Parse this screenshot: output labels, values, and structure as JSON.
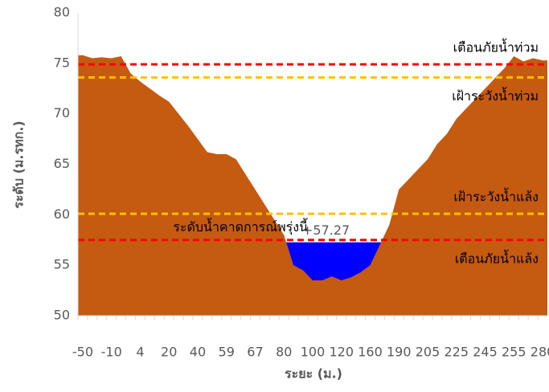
{
  "chart_data": {
    "type": "area",
    "xlabel": "ระยะ (ม.)",
    "ylabel": "ระดับ (ม.รทก.)",
    "categories": [
      "-50",
      null,
      null,
      "-10",
      null,
      null,
      "4",
      null,
      null,
      "20",
      null,
      null,
      "40",
      null,
      null,
      "59",
      null,
      null,
      "67",
      null,
      null,
      "80",
      null,
      null,
      "100",
      null,
      null,
      "120",
      null,
      null,
      "160",
      null,
      null,
      "190",
      null,
      null,
      "205",
      null,
      null,
      "225",
      null,
      null,
      "245",
      null,
      null,
      "255",
      null,
      null,
      "280"
    ],
    "series": [
      {
        "name": "ground",
        "color": "#c55a11",
        "values": [
          75.8,
          75.5,
          75.6,
          75.5,
          75.7,
          74,
          73.2,
          72.5,
          71.8,
          71.2,
          70,
          68.8,
          67.5,
          66.2,
          66,
          66,
          65.5,
          64,
          62.5,
          61,
          59.5,
          58,
          55,
          54.5,
          53.5,
          53.5,
          53.9,
          53.5,
          53.8,
          54.3,
          55,
          57,
          59,
          62.5,
          63.5,
          64.5,
          65.5,
          67,
          68,
          69.5,
          70.5,
          71.5,
          72.5,
          73.5,
          74.5,
          75.7,
          75.2,
          75.5,
          75.3
        ]
      }
    ],
    "water_level": {
      "label": "ระดับน้ำคาดการณ์พรุ่งนี้",
      "value": 57.27,
      "value_label": "+57.27",
      "color": "#0000ff"
    },
    "thresholds": [
      {
        "name": "เตือนภัยน้ำท่วม",
        "value": 74.9,
        "color": "#ff0000"
      },
      {
        "name": "เฝ้าระวังน้ำท่วม",
        "value": 73.6,
        "color": "#ffc000"
      },
      {
        "name": "เฝ้าระวังน้ำแล้ง",
        "value": 60.1,
        "color": "#ffc000"
      },
      {
        "name": "เตือนภัยน้ำแล้ง",
        "value": 57.5,
        "color": "#ff0000"
      }
    ],
    "ylim": [
      50,
      80
    ],
    "yticks": [
      50,
      55,
      60,
      65,
      70,
      75,
      80
    ],
    "grid": false
  }
}
